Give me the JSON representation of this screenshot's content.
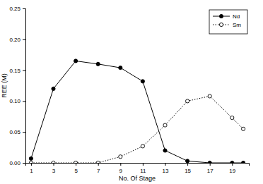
{
  "chart_data": {
    "type": "line",
    "x_label": "No. Of Stage",
    "y_label": "REE (M)",
    "x": [
      1,
      3,
      5,
      7,
      9,
      11,
      13,
      15,
      17,
      19,
      20
    ],
    "series": [
      {
        "name": "Nd",
        "color": "#000000",
        "marker": "circle",
        "line_style": "solid",
        "values": [
          0.007,
          0.12,
          0.165,
          0.16,
          0.154,
          0.132,
          0.02,
          0.003,
          0.0,
          0.0,
          0.0
        ]
      },
      {
        "name": "Sm",
        "color": "#000000",
        "marker": "open-circle",
        "line_style": "dotted",
        "values": [
          0.0,
          0.0,
          0.0,
          0.0,
          0.01,
          0.027,
          0.061,
          0.1,
          0.108,
          0.073,
          0.055
        ]
      }
    ],
    "xlim": [
      0.5,
      20.5
    ],
    "xticks": [
      1,
      3,
      5,
      7,
      9,
      11,
      13,
      15,
      17,
      19
    ],
    "ylim": [
      0,
      0.25
    ],
    "yticks": [
      {
        "value": 0,
        "label": "0.00"
      },
      0.05,
      {
        "value": 0.1,
        "label": "0.10"
      },
      0.15,
      {
        "value": 0.2,
        "label": "0.20"
      },
      0.25
    ],
    "legend": "upper right",
    "grid": false
  }
}
